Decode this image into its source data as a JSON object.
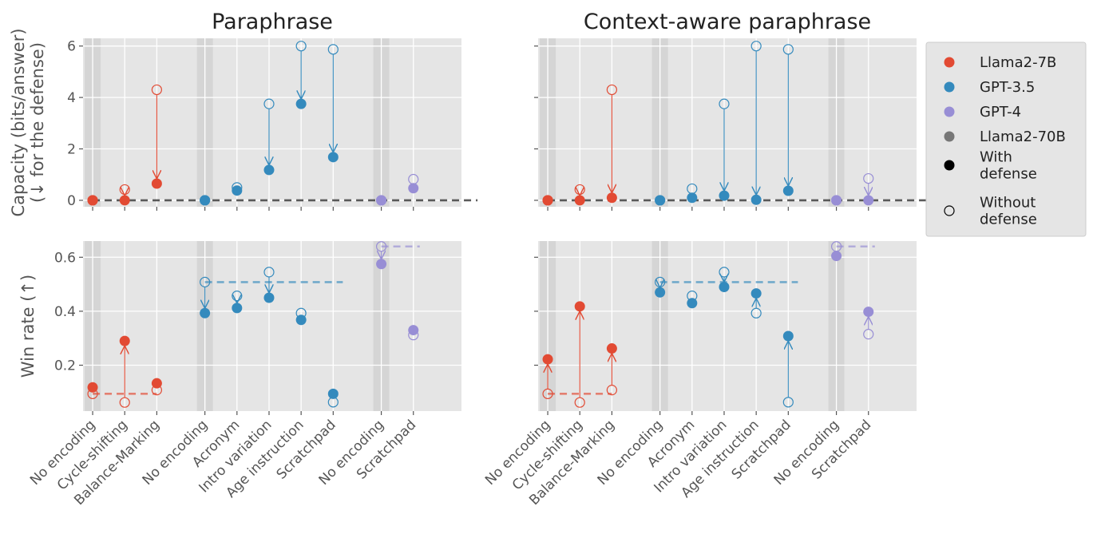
{
  "chart_data": {
    "type": "scatter",
    "columns": [
      {
        "title": "Paraphrase"
      },
      {
        "title": "Context-aware paraphrase"
      }
    ],
    "categories": [
      "No encoding",
      "Cycle-shifting",
      "Balance-Marking",
      "No encoding",
      "Acronym",
      "Intro variation",
      "Age instruction",
      "Scratchpad",
      "No encoding",
      "Scratchpad"
    ],
    "category_models": [
      "Llama2-7B",
      "Llama2-7B",
      "Llama2-7B",
      "GPT-3.5",
      "GPT-3.5",
      "GPT-3.5",
      "GPT-3.5",
      "GPT-3.5",
      "GPT-4",
      "GPT-4"
    ],
    "rows": [
      {
        "ylabel": [
          "Capacity (bits/answer)",
          "(↓ for the defense)"
        ],
        "ylim": [
          -0.25,
          6.3
        ],
        "yticks": [
          0,
          2,
          4,
          6
        ],
        "yticklabels": [
          "0",
          "2",
          "4",
          "6"
        ]
      },
      {
        "ylabel": [
          "Win rate (↑)"
        ],
        "ylim": [
          0.03,
          0.66
        ],
        "yticks": [
          0.2,
          0.4,
          0.6
        ],
        "yticklabels": [
          "0.2",
          "0.4",
          "0.6"
        ]
      }
    ],
    "series": [
      {
        "name": "Llama2-7B",
        "color": "#E24A33",
        "indices": [
          0,
          1,
          2
        ]
      },
      {
        "name": "GPT-3.5",
        "color": "#348ABD",
        "indices": [
          3,
          4,
          5,
          6,
          7
        ]
      },
      {
        "name": "GPT-4",
        "color": "#988ED5",
        "indices": [
          8,
          9
        ]
      },
      {
        "name": "Llama2-70B",
        "color": "#777777",
        "indices": []
      }
    ],
    "panels": [
      {
        "row": 0,
        "col": 0,
        "without_defense": [
          0.0,
          0.42,
          4.3,
          0.0,
          0.5,
          3.75,
          6.0,
          5.87,
          0.0,
          0.82
        ],
        "with_defense": [
          0.0,
          0.0,
          0.65,
          0.0,
          0.38,
          1.18,
          3.75,
          1.68,
          0.0,
          0.47
        ],
        "baselines": [
          {
            "value": 0.0,
            "from": 0,
            "to": 11,
            "color": "#333333"
          }
        ]
      },
      {
        "row": 0,
        "col": 1,
        "without_defense": [
          0.0,
          0.42,
          4.3,
          0.0,
          0.45,
          3.75,
          6.0,
          5.87,
          0.0,
          0.85
        ],
        "with_defense": [
          0.0,
          0.0,
          0.1,
          0.0,
          0.1,
          0.18,
          0.02,
          0.37,
          0.0,
          0.0
        ],
        "baselines": [
          {
            "value": 0.0,
            "from": 0,
            "to": 11,
            "color": "#333333"
          }
        ]
      },
      {
        "row": 1,
        "col": 0,
        "without_defense": [
          0.094,
          0.062,
          0.108,
          0.508,
          0.457,
          0.545,
          0.393,
          0.063,
          0.64,
          0.312
        ],
        "with_defense": [
          0.118,
          0.29,
          0.133,
          0.393,
          0.412,
          0.45,
          0.368,
          0.094,
          0.575,
          0.33
        ],
        "baselines": [
          {
            "value": 0.094,
            "from": 0,
            "to": 2,
            "color": "#E24A33"
          },
          {
            "value": 0.508,
            "from": 3,
            "to": 7.2,
            "color": "#348ABD"
          },
          {
            "value": 0.64,
            "from": 8,
            "to": 9.2,
            "color": "#988ED5"
          }
        ]
      },
      {
        "row": 1,
        "col": 1,
        "without_defense": [
          0.094,
          0.062,
          0.108,
          0.508,
          0.457,
          0.545,
          0.393,
          0.063,
          0.64,
          0.315
        ],
        "with_defense": [
          0.222,
          0.418,
          0.262,
          0.47,
          0.43,
          0.49,
          0.466,
          0.308,
          0.605,
          0.398
        ],
        "baselines": [
          {
            "value": 0.094,
            "from": 0,
            "to": 2,
            "color": "#E24A33"
          },
          {
            "value": 0.508,
            "from": 3,
            "to": 7.2,
            "color": "#348ABD"
          },
          {
            "value": 0.64,
            "from": 8,
            "to": 9.2,
            "color": "#988ED5"
          }
        ]
      }
    ],
    "no_encoding_bands": [
      0,
      3,
      8
    ],
    "legend": {
      "position": "right",
      "entries": [
        {
          "label": [
            "Llama2-7B"
          ],
          "color": "#E24A33",
          "filled": true
        },
        {
          "label": [
            "GPT-3.5"
          ],
          "color": "#348ABD",
          "filled": true
        },
        {
          "label": [
            "GPT-4"
          ],
          "color": "#988ED5",
          "filled": true
        },
        {
          "label": [
            "Llama2-70B"
          ],
          "color": "#777777",
          "filled": true
        },
        {
          "label": [
            "With",
            "defense"
          ],
          "color": "#000000",
          "filled": true
        },
        {
          "label": [
            "Without",
            "defense"
          ],
          "color": "#000000",
          "filled": false
        }
      ]
    }
  }
}
